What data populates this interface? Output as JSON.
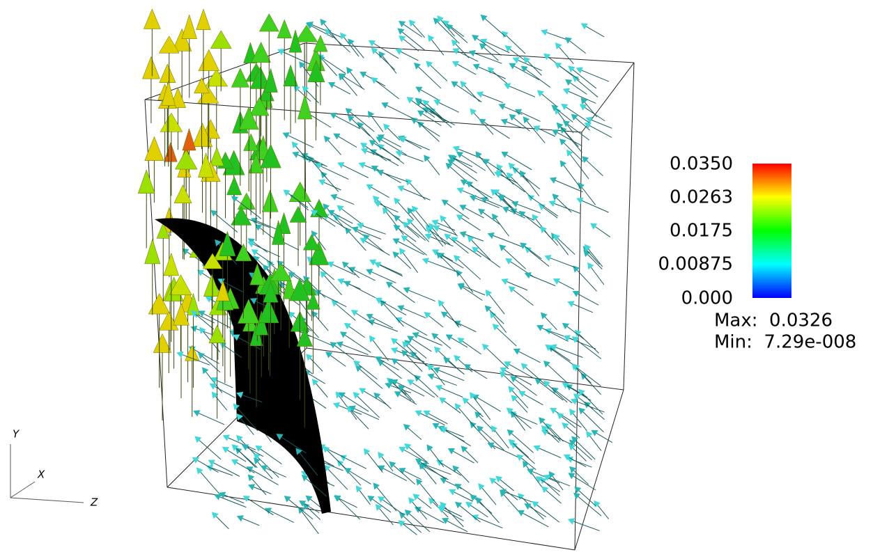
{
  "color_legend": {
    "labels": [
      "0.0350",
      "0.0263",
      "0.0175",
      "0.00875",
      "0.000"
    ],
    "max": "Max:  0.0326",
    "min": "Min:  7.29e-008"
  },
  "axes": {
    "y": "Y",
    "x": "X",
    "z": "Z"
  }
}
